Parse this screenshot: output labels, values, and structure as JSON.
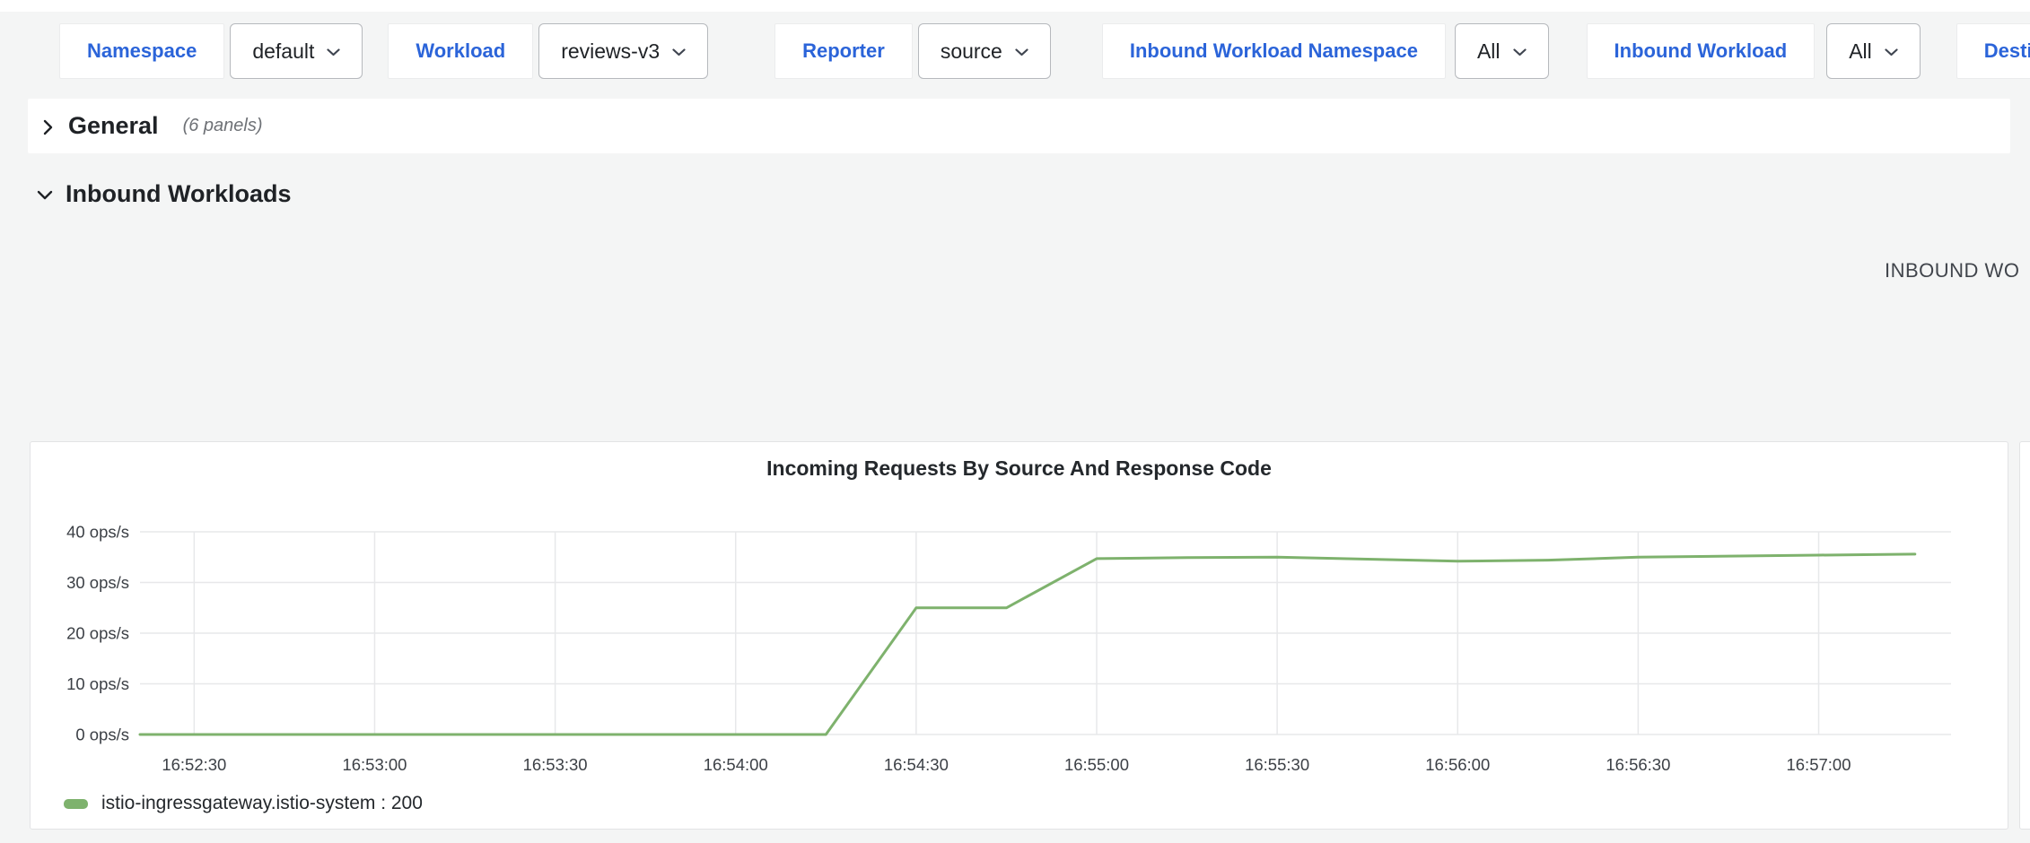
{
  "colors": {
    "link_blue": "#2b64d9",
    "series_green": "#7EB26D",
    "page_background": "#f4f5f5",
    "panel_background": "#ffffff"
  },
  "toolbar": {
    "filters": [
      {
        "label": "Namespace",
        "value": "default"
      },
      {
        "label": "Workload",
        "value": "reviews-v3"
      },
      {
        "label": "Reporter",
        "value": "source"
      },
      {
        "label": "Inbound Workload Namespace",
        "value": "All"
      },
      {
        "label": "Inbound Workload",
        "value": "All"
      },
      {
        "label": "Destination Service",
        "value": ""
      }
    ]
  },
  "sections": {
    "general": {
      "title": "General",
      "panel_count_label": "(6 panels)",
      "state": "collapsed"
    },
    "inbound_workloads": {
      "title": "Inbound Workloads",
      "state": "expanded"
    }
  },
  "right_heading": "INBOUND WO",
  "chart_data": {
    "type": "line",
    "title": "Incoming Requests By Source And Response Code",
    "xlabel": "",
    "ylabel": "",
    "unit": "ops/s",
    "grid": true,
    "legend_position": "bottom-left",
    "ylim": [
      0,
      40
    ],
    "yticks": [
      0,
      10,
      20,
      30,
      40
    ],
    "ytick_labels": [
      "0 ops/s",
      "10 ops/s",
      "20 ops/s",
      "30 ops/s",
      "40 ops/s"
    ],
    "xtick_labels": [
      "16:52:30",
      "16:53:00",
      "16:53:30",
      "16:54:00",
      "16:54:30",
      "16:55:00",
      "16:55:30",
      "16:56:00",
      "16:56:30",
      "16:57:00"
    ],
    "x_range": [
      "16:52:21",
      "16:57:22"
    ],
    "series": [
      {
        "name": "istio-ingressgateway.istio-system : 200",
        "color": "#7EB26D",
        "points": [
          [
            "16:52:21",
            0
          ],
          [
            "16:52:30",
            0
          ],
          [
            "16:53:00",
            0
          ],
          [
            "16:53:30",
            0
          ],
          [
            "16:54:00",
            0
          ],
          [
            "16:54:15",
            0
          ],
          [
            "16:54:30",
            25
          ],
          [
            "16:54:45",
            25
          ],
          [
            "16:55:00",
            34.7
          ],
          [
            "16:55:15",
            34.9
          ],
          [
            "16:55:30",
            35.0
          ],
          [
            "16:55:45",
            34.6
          ],
          [
            "16:56:00",
            34.2
          ],
          [
            "16:56:15",
            34.4
          ],
          [
            "16:56:30",
            35.0
          ],
          [
            "16:56:45",
            35.2
          ],
          [
            "16:57:00",
            35.4
          ],
          [
            "16:57:16",
            35.6
          ]
        ]
      }
    ]
  }
}
